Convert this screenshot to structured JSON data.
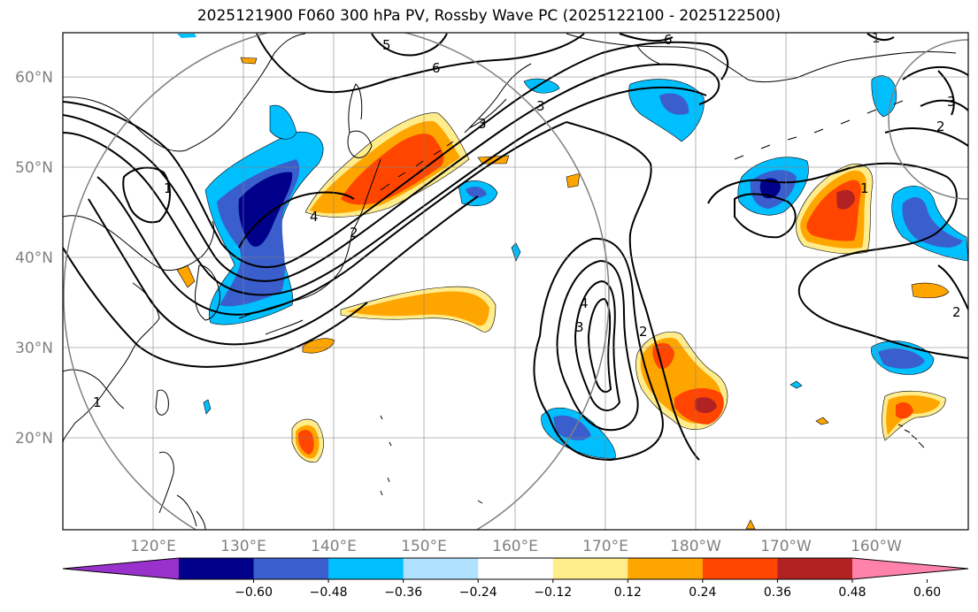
{
  "title": "2025121900 F060 300 hPa PV, Rossby Wave PC (2025122100 - 2025122500)",
  "latitude_labels": [
    "60°N",
    "50°N",
    "40°N",
    "30°N",
    "20°N"
  ],
  "longitude_labels": [
    "120°E",
    "130°E",
    "140°E",
    "150°E",
    "160°E",
    "170°E",
    "180°W",
    "170°W",
    "160°W"
  ],
  "colorbar": {
    "tick_labels": [
      "−0.60",
      "−0.48",
      "−0.36",
      "−0.24",
      "−0.12",
      "0.12",
      "0.24",
      "0.36",
      "0.48",
      "0.60"
    ],
    "colors": [
      "#9932cc",
      "#00008b",
      "#3a5fcd",
      "#00bfff",
      "#b0e2ff",
      "#ffffff",
      "#ffec8b",
      "#ffa500",
      "#ff4500",
      "#b22222",
      "#ff82ab"
    ]
  },
  "pv_contour_labels": [
    "1",
    "1",
    "2",
    "3",
    "4",
    "5",
    "6",
    "6",
    "1",
    "2",
    "3",
    "4",
    "3",
    "2",
    "1",
    "2",
    "3"
  ]
}
